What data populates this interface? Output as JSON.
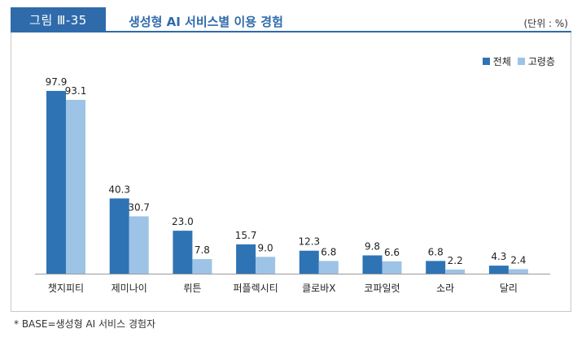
{
  "figure_label": "그림 Ⅲ-35",
  "title": "생성형 AI 서비스별 이용 경험",
  "unit": "(단위 : %)",
  "footnote": "* BASE=생성형 AI 서비스 경험자",
  "colors": {
    "accent": "#2f6bab",
    "series1": "#2e74b5",
    "series2": "#9dc3e6"
  },
  "chart_data": {
    "type": "bar",
    "categories": [
      "챗지피티",
      "제미나이",
      "뤼튼",
      "퍼플렉시티",
      "클로바X",
      "코파일럿",
      "소라",
      "달리"
    ],
    "series": [
      {
        "name": "전체",
        "values": [
          97.9,
          40.3,
          23.0,
          15.7,
          12.3,
          9.8,
          6.8,
          4.3
        ],
        "labels": [
          "97.9",
          "40.3",
          "23.0",
          "15.7",
          "12.3",
          "9.8",
          "6.8",
          "4.3"
        ]
      },
      {
        "name": "고령층",
        "values": [
          93.1,
          30.7,
          7.8,
          9.0,
          6.8,
          6.6,
          2.2,
          2.4
        ],
        "labels": [
          "93.1",
          "30.7",
          "7.8",
          "9.0",
          "6.8",
          "6.6",
          "2.2",
          "2.4"
        ]
      }
    ],
    "ylim": [
      0,
      100
    ],
    "grid": false,
    "legend_position": "top-right"
  }
}
